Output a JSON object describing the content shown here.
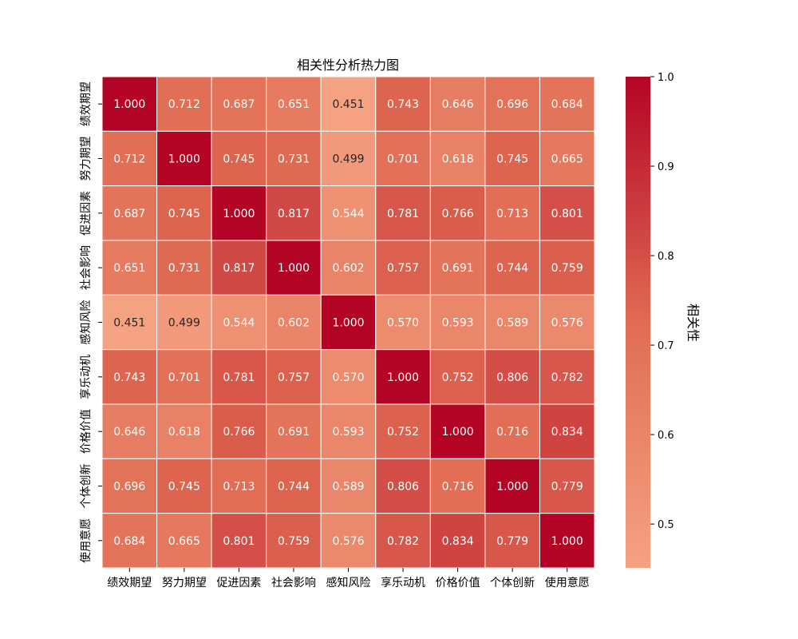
{
  "chart_data": {
    "type": "heatmap",
    "title": "相关性分析热力图",
    "colorbar_label": "相关性",
    "categories": [
      "绩效期望",
      "努力期望",
      "促进因素",
      "社会影响",
      "感知风险",
      "享乐动机",
      "价格价值",
      "个体创新",
      "使用意愿"
    ],
    "matrix": [
      [
        1.0,
        0.712,
        0.687,
        0.651,
        0.451,
        0.743,
        0.646,
        0.696,
        0.684
      ],
      [
        0.712,
        1.0,
        0.745,
        0.731,
        0.499,
        0.701,
        0.618,
        0.745,
        0.665
      ],
      [
        0.687,
        0.745,
        1.0,
        0.817,
        0.544,
        0.781,
        0.766,
        0.713,
        0.801
      ],
      [
        0.651,
        0.731,
        0.817,
        1.0,
        0.602,
        0.757,
        0.691,
        0.744,
        0.759
      ],
      [
        0.451,
        0.499,
        0.544,
        0.602,
        1.0,
        0.57,
        0.593,
        0.589,
        0.576
      ],
      [
        0.743,
        0.701,
        0.781,
        0.757,
        0.57,
        1.0,
        0.752,
        0.806,
        0.782
      ],
      [
        0.646,
        0.618,
        0.766,
        0.691,
        0.593,
        0.752,
        1.0,
        0.716,
        0.834
      ],
      [
        0.696,
        0.745,
        0.713,
        0.744,
        0.589,
        0.806,
        0.716,
        1.0,
        0.779
      ],
      [
        0.684,
        0.665,
        0.801,
        0.759,
        0.576,
        0.782,
        0.834,
        0.779,
        1.0
      ]
    ],
    "vmin": 0.451,
    "vmax": 1.0,
    "colorbar_ticks": [
      "0.5",
      "0.6",
      "0.7",
      "0.8",
      "0.9",
      "1.0"
    ],
    "colorbar_tick_values": [
      0.5,
      0.6,
      0.7,
      0.8,
      0.9,
      1.0
    ],
    "value_format": "0.000",
    "colormap": "coolwarm (upper half)",
    "colors": {
      "low": "#f5a282",
      "mid": "#e06c53",
      "high": "#b40426",
      "dark_text": "#262626",
      "light_text": "#ffffff",
      "gridline": "#ffffff"
    }
  }
}
